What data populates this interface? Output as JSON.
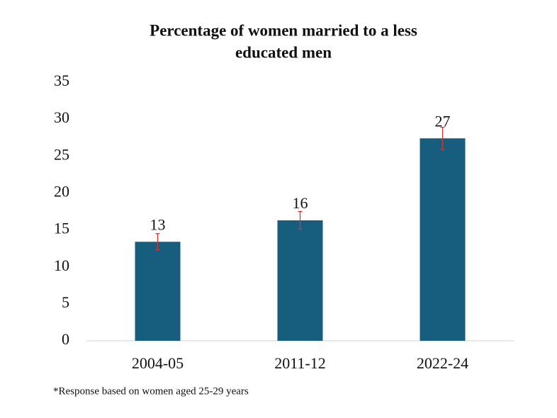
{
  "chart_data": {
    "type": "bar",
    "title": [
      "Percentage of women married to a less",
      "educated men"
    ],
    "categories": [
      "2004-05",
      "2011-12",
      "2022-24"
    ],
    "series": [
      {
        "values": [
          13.4,
          16.3,
          27.4
        ],
        "value_labels": [
          "13",
          "16",
          "27"
        ],
        "errors": [
          1.1,
          1.2,
          1.5
        ],
        "color": "#175e7e",
        "error_color": "#d9332e"
      }
    ],
    "ylim": [
      0,
      35
    ],
    "yticks": [
      0,
      5,
      10,
      15,
      20,
      25,
      30,
      35
    ],
    "grid": false,
    "note": "*Response based on women aged 25-29 years"
  }
}
